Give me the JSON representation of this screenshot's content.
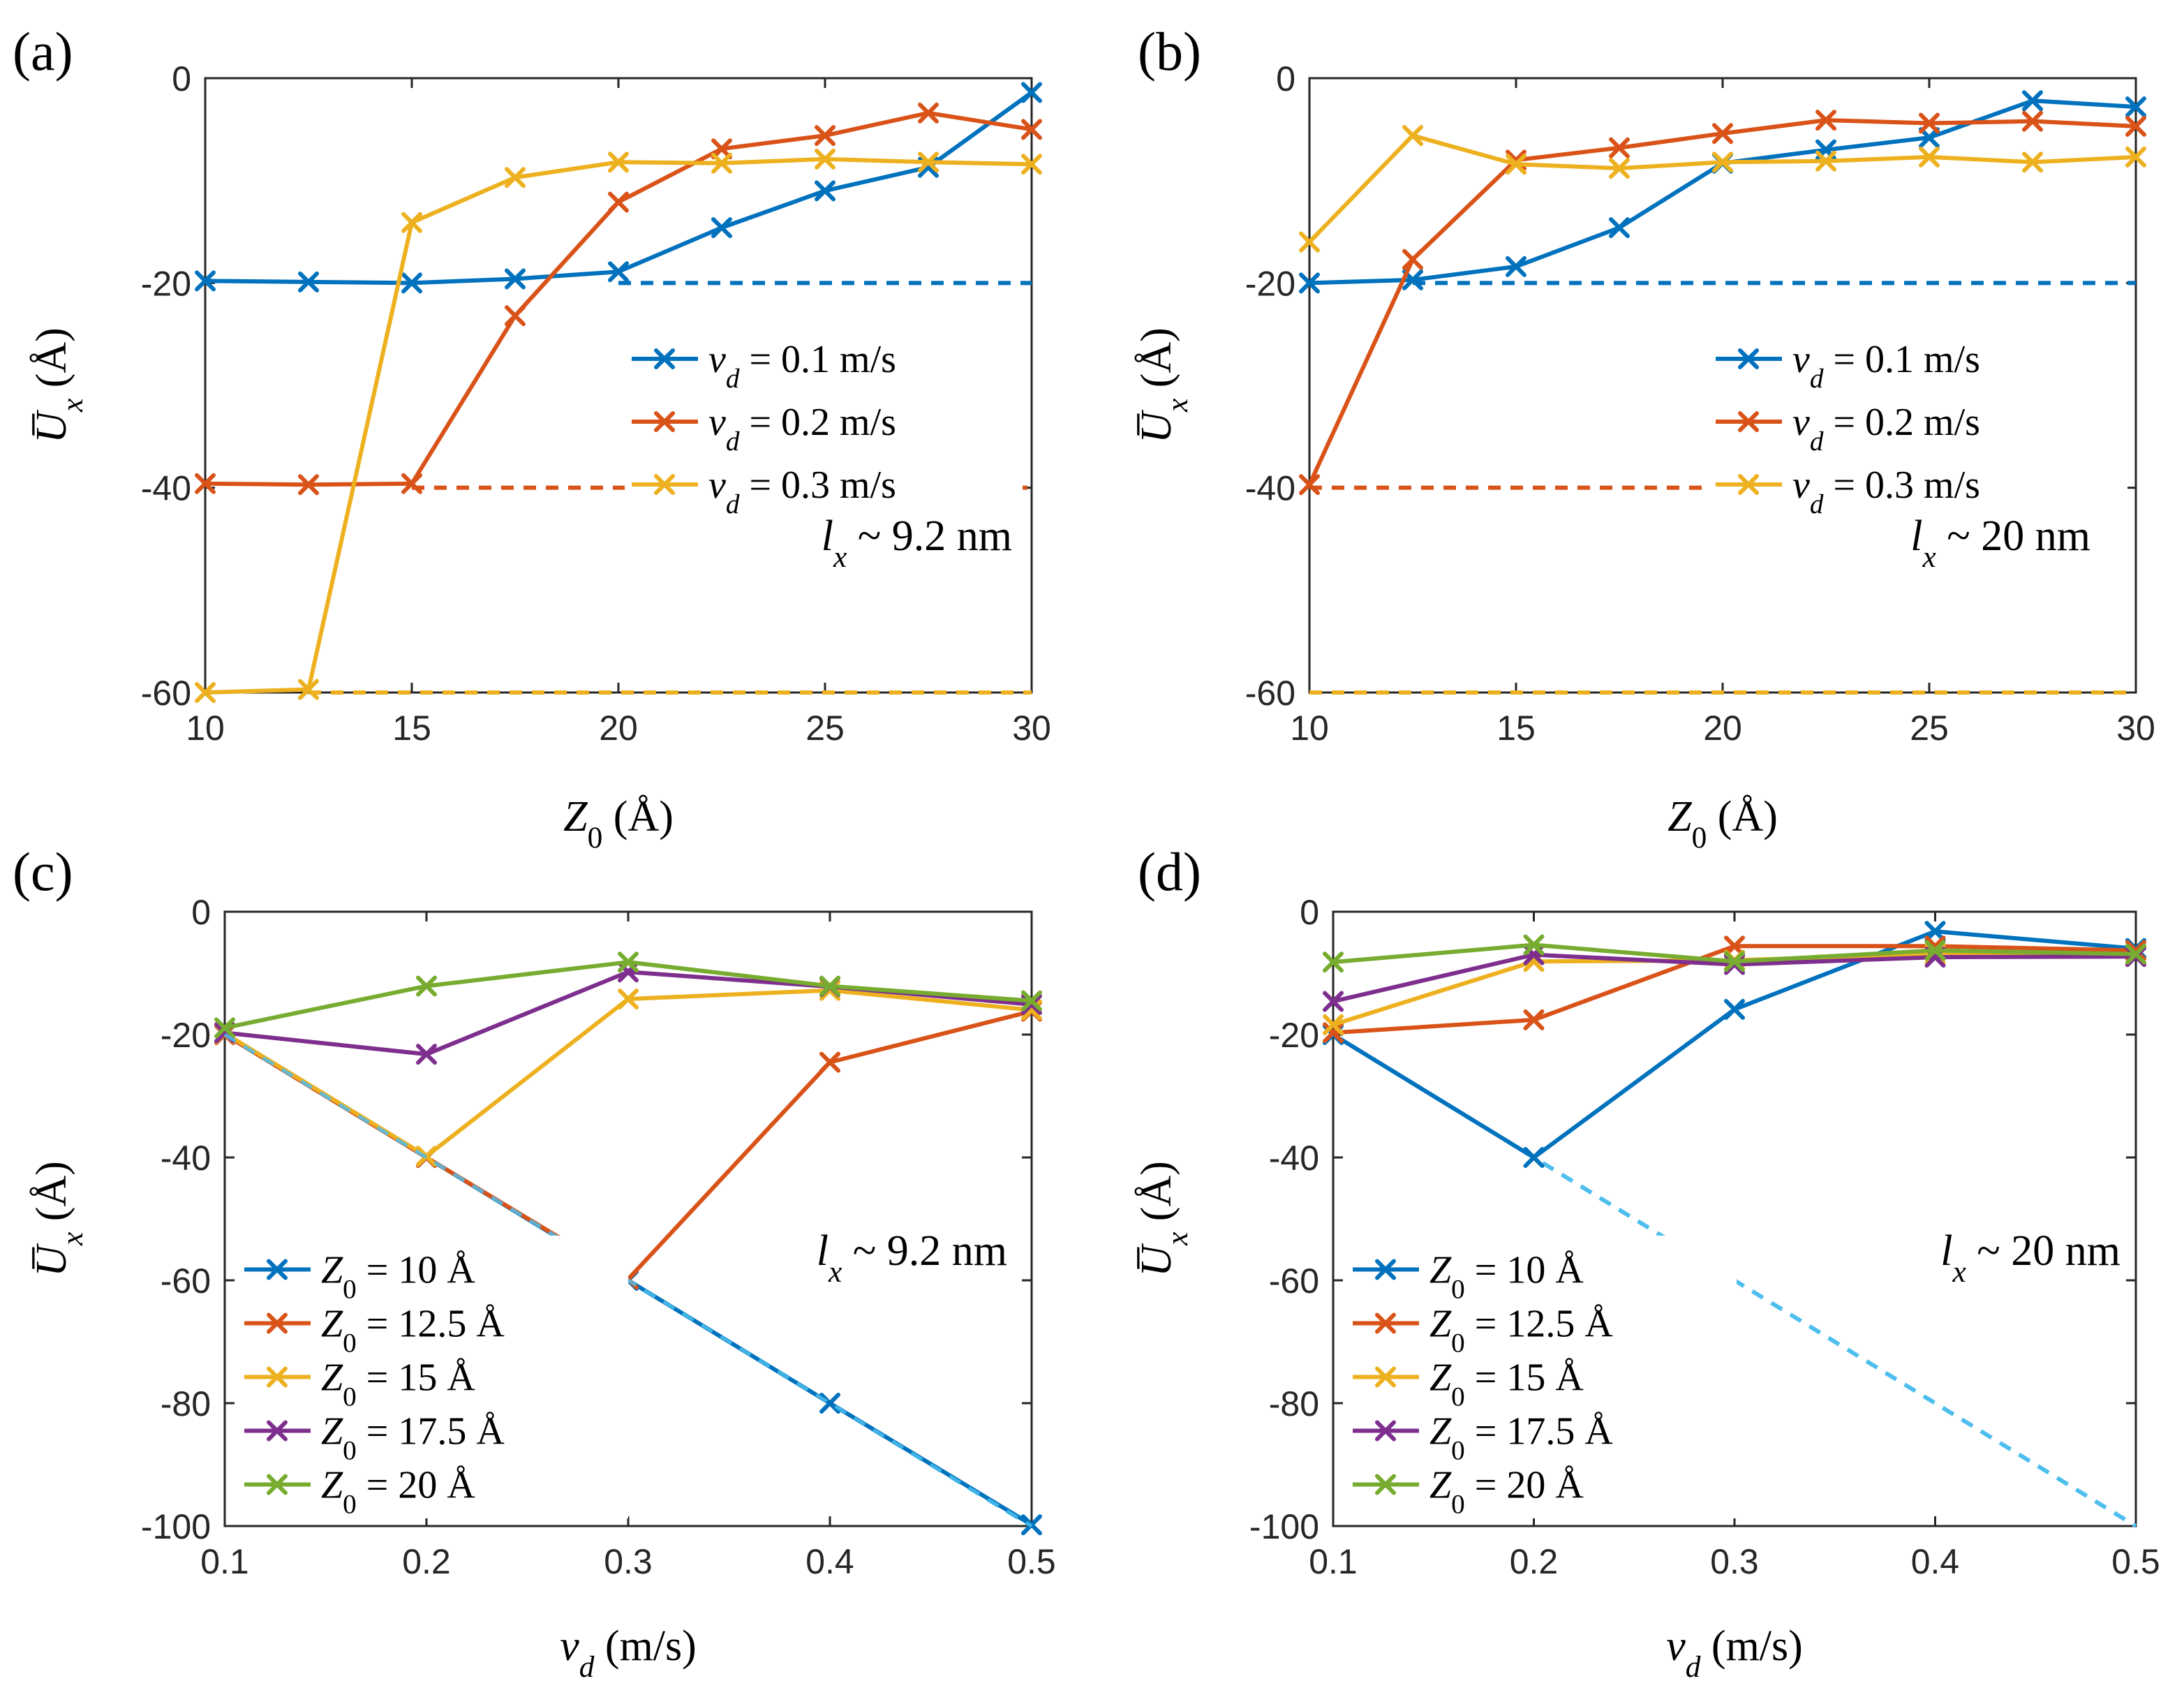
{
  "colors": {
    "blue": "#0072BD",
    "orange": "#D95319",
    "yellow": "#EDB120",
    "purple": "#7E2F8E",
    "green": "#77AC30",
    "lightblue": "#4DBEEE"
  },
  "chart_data": [
    {
      "type": "line",
      "panel": "(a)",
      "xlabel": "Z₀ (Å)",
      "ylabel": "U̅ₓ (Å)",
      "xlim": [
        10,
        30
      ],
      "ylim": [
        -60,
        0
      ],
      "xticks": [
        "10",
        "15",
        "20",
        "25",
        "30"
      ],
      "yticks": [
        "0",
        "-20",
        "-40",
        "-60"
      ],
      "annotation": "lₓ ~ 9.2 nm",
      "legend_location": "right",
      "x": [
        10,
        12.5,
        15,
        17.5,
        20,
        22.5,
        25,
        27.5,
        30
      ],
      "series": [
        {
          "name": "v_d = 0.1 m/s",
          "color": "blue",
          "values": [
            -19.8,
            -19.9,
            -20.0,
            -19.6,
            -18.9,
            -14.6,
            -11.0,
            -8.7,
            -1.4
          ]
        },
        {
          "name": "v_d = 0.2 m/s",
          "color": "orange",
          "values": [
            -39.6,
            -39.7,
            -39.6,
            -23.2,
            -12.1,
            -6.9,
            -5.6,
            -3.4,
            -5.0
          ]
        },
        {
          "name": "v_d = 0.3 m/s",
          "color": "yellow",
          "values": [
            -60.0,
            -59.7,
            -14.1,
            -9.7,
            -8.2,
            -8.3,
            -7.9,
            -8.2,
            -8.4
          ]
        }
      ],
      "reference_lines": [
        {
          "color": "blue",
          "x": [
            20,
            30
          ],
          "y": [
            -20,
            -20
          ]
        },
        {
          "color": "orange",
          "x": [
            15,
            30
          ],
          "y": [
            -40,
            -40
          ]
        },
        {
          "color": "yellow",
          "x": [
            12.5,
            30
          ],
          "y": [
            -60,
            -60
          ]
        }
      ]
    },
    {
      "type": "line",
      "panel": "(b)",
      "xlabel": "Z₀ (Å)",
      "ylabel": "U̅ₓ (Å)",
      "xlim": [
        10,
        30
      ],
      "ylim": [
        -60,
        0
      ],
      "xticks": [
        "10",
        "15",
        "20",
        "25",
        "30"
      ],
      "yticks": [
        "0",
        "-20",
        "-40",
        "-60"
      ],
      "annotation": "lₓ ~ 20 nm",
      "legend_location": "right",
      "x": [
        10,
        12.5,
        15,
        17.5,
        20,
        22.5,
        25,
        27.5,
        30
      ],
      "series": [
        {
          "name": "v_d = 0.1 m/s",
          "color": "blue",
          "values": [
            -20.0,
            -19.7,
            -18.4,
            -14.6,
            -8.3,
            -7.0,
            -5.8,
            -2.2,
            -2.8
          ]
        },
        {
          "name": "v_d = 0.2 m/s",
          "color": "orange",
          "values": [
            -39.7,
            -17.7,
            -8.0,
            -6.8,
            -5.4,
            -4.1,
            -4.4,
            -4.2,
            -4.7
          ]
        },
        {
          "name": "v_d = 0.3 m/s",
          "color": "yellow",
          "values": [
            -16.0,
            -5.6,
            -8.4,
            -8.8,
            -8.2,
            -8.1,
            -7.7,
            -8.2,
            -7.7
          ]
        }
      ],
      "reference_lines": [
        {
          "color": "blue",
          "x": [
            12.5,
            30
          ],
          "y": [
            -20,
            -20
          ]
        },
        {
          "color": "orange",
          "x": [
            10,
            30
          ],
          "y": [
            -40,
            -40
          ]
        },
        {
          "color": "yellow",
          "x": [
            10,
            30
          ],
          "y": [
            -60,
            -60
          ]
        }
      ]
    },
    {
      "type": "line",
      "panel": "(c)",
      "xlabel": "v_d (m/s)",
      "ylabel": "U̅ₓ (Å)",
      "xlim": [
        0.1,
        0.5
      ],
      "ylim": [
        -100,
        0
      ],
      "xticks": [
        "0.1",
        "0.2",
        "0.3",
        "0.4",
        "0.5"
      ],
      "yticks": [
        "0",
        "-20",
        "-40",
        "-60",
        "-80",
        "-100"
      ],
      "annotation": "lₓ ~ 9.2 nm",
      "legend_location": "bottom-left",
      "x": [
        0.1,
        0.2,
        0.3,
        0.4,
        0.5
      ],
      "series": [
        {
          "name": "Z₀ = 10 Å",
          "color": "blue",
          "values": [
            -20.0,
            -40.0,
            -60.0,
            -80.0,
            -99.8
          ]
        },
        {
          "name": "Z₀ = 12.5 Å",
          "color": "orange",
          "values": [
            -20.0,
            -40.0,
            -59.8,
            -24.5,
            -16.2
          ]
        },
        {
          "name": "Z₀ = 15 Å",
          "color": "yellow",
          "values": [
            -19.8,
            -39.8,
            -14.2,
            -12.8,
            -16.0
          ]
        },
        {
          "name": "Z₀ = 17.5 Å",
          "color": "purple",
          "values": [
            -19.7,
            -23.2,
            -9.8,
            -12.2,
            -15.1
          ]
        },
        {
          "name": "Z₀ = 20 Å",
          "color": "green",
          "values": [
            -18.9,
            -12.1,
            -8.2,
            -12.1,
            -14.5
          ]
        }
      ],
      "reference_lines": [
        {
          "color": "lightblue",
          "x": [
            0.1,
            0.5
          ],
          "y": [
            -20,
            -100
          ]
        }
      ]
    },
    {
      "type": "line",
      "panel": "(d)",
      "xlabel": "v_d (m/s)",
      "ylabel": "U̅ₓ (Å)",
      "xlim": [
        0.1,
        0.5
      ],
      "ylim": [
        -100,
        0
      ],
      "xticks": [
        "0.1",
        "0.2",
        "0.3",
        "0.4",
        "0.5"
      ],
      "yticks": [
        "0",
        "-20",
        "-40",
        "-60",
        "-80",
        "-100"
      ],
      "annotation": "lₓ ~ 20 nm",
      "legend_location": "bottom-left",
      "x": [
        0.1,
        0.2,
        0.3,
        0.4,
        0.5
      ],
      "series": [
        {
          "name": "Z₀ = 10 Å",
          "color": "blue",
          "values": [
            -20.0,
            -40.0,
            -15.9,
            -3.2,
            -6.0
          ]
        },
        {
          "name": "Z₀ = 12.5 Å",
          "color": "orange",
          "values": [
            -19.7,
            -17.6,
            -5.6,
            -5.6,
            -6.3
          ]
        },
        {
          "name": "Z₀ = 15 Å",
          "color": "yellow",
          "values": [
            -18.4,
            -8.1,
            -7.9,
            -6.9,
            -7.1
          ]
        },
        {
          "name": "Z₀ = 17.5 Å",
          "color": "purple",
          "values": [
            -14.6,
            -7.0,
            -8.6,
            -7.4,
            -7.3
          ]
        },
        {
          "name": "Z₀ = 20 Å",
          "color": "green",
          "values": [
            -8.2,
            -5.4,
            -8.1,
            -6.3,
            -6.9
          ]
        }
      ],
      "reference_lines": [
        {
          "color": "lightblue",
          "x": [
            0.1,
            0.5
          ],
          "y": [
            -20,
            -100
          ]
        }
      ]
    }
  ]
}
